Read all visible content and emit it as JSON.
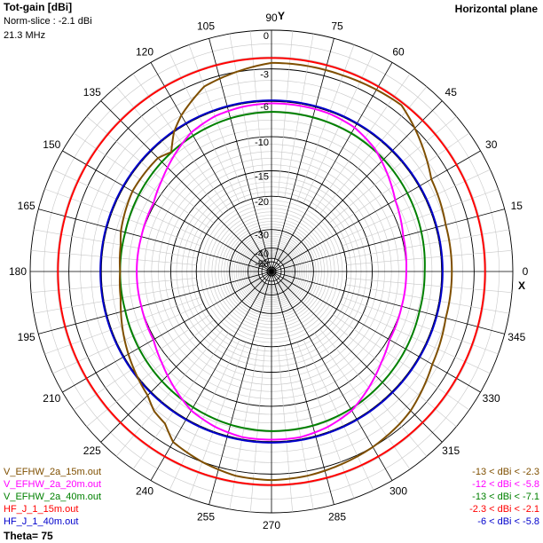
{
  "header": {
    "title": "Tot-gain [dBi]",
    "norm_slice": "Norm-slice : -2.1 dBi",
    "frequency": "21.3 MHz",
    "plane": "Horizontal plane"
  },
  "axes": {
    "y_label": "Y",
    "x_label": "X"
  },
  "footer": {
    "theta": "Theta= 75"
  },
  "chart_data": {
    "type": "polar",
    "title": "Tot-gain [dBi]",
    "subtitle": "Horizontal plane",
    "frequency": "21.3 MHz",
    "norm_slice": "Norm-slice : -2.1 dBi",
    "theta_label": "Theta= 75",
    "angle_ticks_deg": [
      "0",
      "15",
      "30",
      "45",
      "60",
      "75",
      "90",
      "105",
      "120",
      "135",
      "150",
      "165",
      "180",
      "195",
      "210",
      "225",
      "240",
      "255",
      "270",
      "285",
      "300",
      "315",
      "330",
      "345"
    ],
    "radial_ticks_db": [
      "0",
      "-3",
      "-6",
      "-10",
      "-15",
      "-20",
      "-30",
      "-40",
      "-50"
    ],
    "series": [
      {
        "name": "V_EFHW_2a_15m.out",
        "range_text": "-13 < dBi < -2.3",
        "color": "#7f4f00",
        "angles": [
          0,
          15,
          30,
          45,
          52,
          60,
          70,
          80,
          90,
          100,
          110,
          120,
          125,
          130,
          135,
          150,
          165,
          170,
          180,
          190,
          195,
          210,
          225,
          230,
          235,
          240,
          250,
          260,
          270,
          280,
          290,
          300,
          310,
          315,
          330,
          345
        ],
        "gains": [
          -5,
          -5,
          -4.6,
          -3,
          -2.3,
          -2.4,
          -2.5,
          -2.5,
          -2.5,
          -3,
          -3.5,
          -5,
          -6,
          -7.5,
          -7,
          -7,
          -7.5,
          -7.8,
          -8,
          -7.8,
          -7.5,
          -6.5,
          -5.5,
          -4.8,
          -4.5,
          -3.5,
          -3,
          -2.6,
          -2.5,
          -2.6,
          -2.8,
          -3,
          -3.3,
          -3.5,
          -4.5,
          -5
        ]
      },
      {
        "name": "V_EFHW_2a_20m.out",
        "range_text": "-12 < dBi < -5.8",
        "color": "#ff00ff",
        "angles": [
          0,
          15,
          30,
          40,
          50,
          60,
          70,
          80,
          90,
          100,
          110,
          120,
          130,
          140,
          150,
          165,
          180,
          195,
          210,
          220,
          230,
          240,
          250,
          260,
          270,
          280,
          290,
          300,
          310,
          320,
          330,
          345
        ],
        "gains": [
          -10,
          -9.8,
          -9,
          -8,
          -7,
          -6.4,
          -6.2,
          -6.2,
          -6.2,
          -6.3,
          -6.5,
          -7,
          -8,
          -9,
          -9.8,
          -10,
          -10,
          -10,
          -9.8,
          -9,
          -8,
          -7,
          -6.5,
          -6.2,
          -6.2,
          -6.2,
          -6.5,
          -7,
          -8,
          -9,
          -9.8,
          -10
        ]
      },
      {
        "name": "V_EFHW_2a_40m.out",
        "range_text": "-13 < dBi < -7.1",
        "color": "#008000",
        "angles": [
          0,
          15,
          30,
          45,
          60,
          75,
          90,
          105,
          120,
          135,
          150,
          165,
          180,
          195,
          210,
          225,
          240,
          255,
          270,
          285,
          300,
          315,
          330,
          345
        ],
        "gains": [
          -7.8,
          -7.6,
          -7.4,
          -7.2,
          -7.1,
          -7.1,
          -7.1,
          -7.2,
          -7.4,
          -7.6,
          -7.8,
          -8,
          -8,
          -8,
          -7.8,
          -7.6,
          -7.4,
          -7.2,
          -7.1,
          -7.1,
          -7.2,
          -7.4,
          -7.6,
          -7.8
        ]
      },
      {
        "name": "HF_J_1_15m.out",
        "range_text": "-2.3 < dBi < -2.1",
        "color": "#ff0000",
        "angles": [
          0,
          90,
          180,
          270
        ],
        "gains": [
          -2.1,
          -2.1,
          -2.1,
          -2.1
        ]
      },
      {
        "name": "HF_J_1_40m.out",
        "range_text": "-6 < dBi < -5.8",
        "color": "#0000cc",
        "angles": [
          0,
          90,
          180,
          270
        ],
        "gains": [
          -5.9,
          -5.9,
          -5.9,
          -5.9
        ]
      }
    ],
    "grid": true
  }
}
